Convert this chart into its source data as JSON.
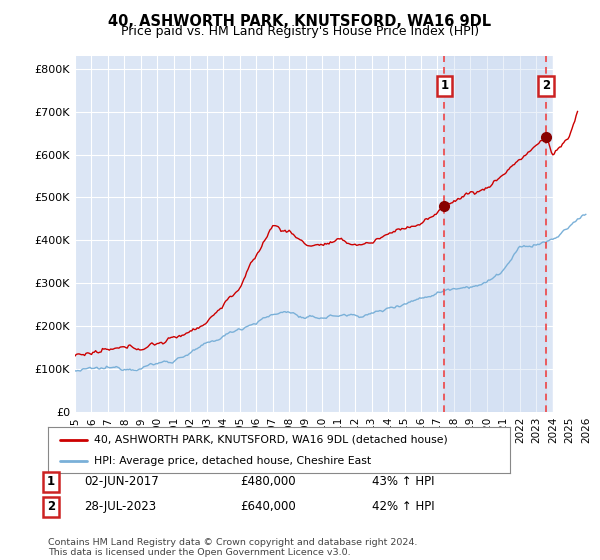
{
  "title": "40, ASHWORTH PARK, KNUTSFORD, WA16 9DL",
  "subtitle": "Price paid vs. HM Land Registry's House Price Index (HPI)",
  "ylabel_ticks": [
    "£0",
    "£100K",
    "£200K",
    "£300K",
    "£400K",
    "£500K",
    "£600K",
    "£700K",
    "£800K"
  ],
  "ytick_values": [
    0,
    100000,
    200000,
    300000,
    400000,
    500000,
    600000,
    700000,
    800000
  ],
  "ylim": [
    0,
    830000
  ],
  "xlim_start": 1995.0,
  "xlim_end": 2026.5,
  "background_color": "#ffffff",
  "plot_bg_color": "#dce6f5",
  "grid_color": "#ffffff",
  "marker1_x": 2017.42,
  "marker1_y": 480000,
  "marker2_x": 2023.57,
  "marker2_y": 640000,
  "marker1_label": "1",
  "marker2_label": "2",
  "marker1_date": "02-JUN-2017",
  "marker1_price": "£480,000",
  "marker1_hpi": "43% ↑ HPI",
  "marker2_date": "28-JUL-2023",
  "marker2_price": "£640,000",
  "marker2_hpi": "42% ↑ HPI",
  "legend_line1": "40, ASHWORTH PARK, KNUTSFORD, WA16 9DL (detached house)",
  "legend_line2": "HPI: Average price, detached house, Cheshire East",
  "footer": "Contains HM Land Registry data © Crown copyright and database right 2024.\nThis data is licensed under the Open Government Licence v3.0.",
  "red_line_color": "#cc0000",
  "blue_line_color": "#7ab0d8",
  "dashed_line_color": "#ee4444",
  "highlight_color": "#ddeeff",
  "hatch_color": "#cccccc",
  "shade_between_markers": true,
  "future_hatch": true,
  "future_start": 2024.0
}
